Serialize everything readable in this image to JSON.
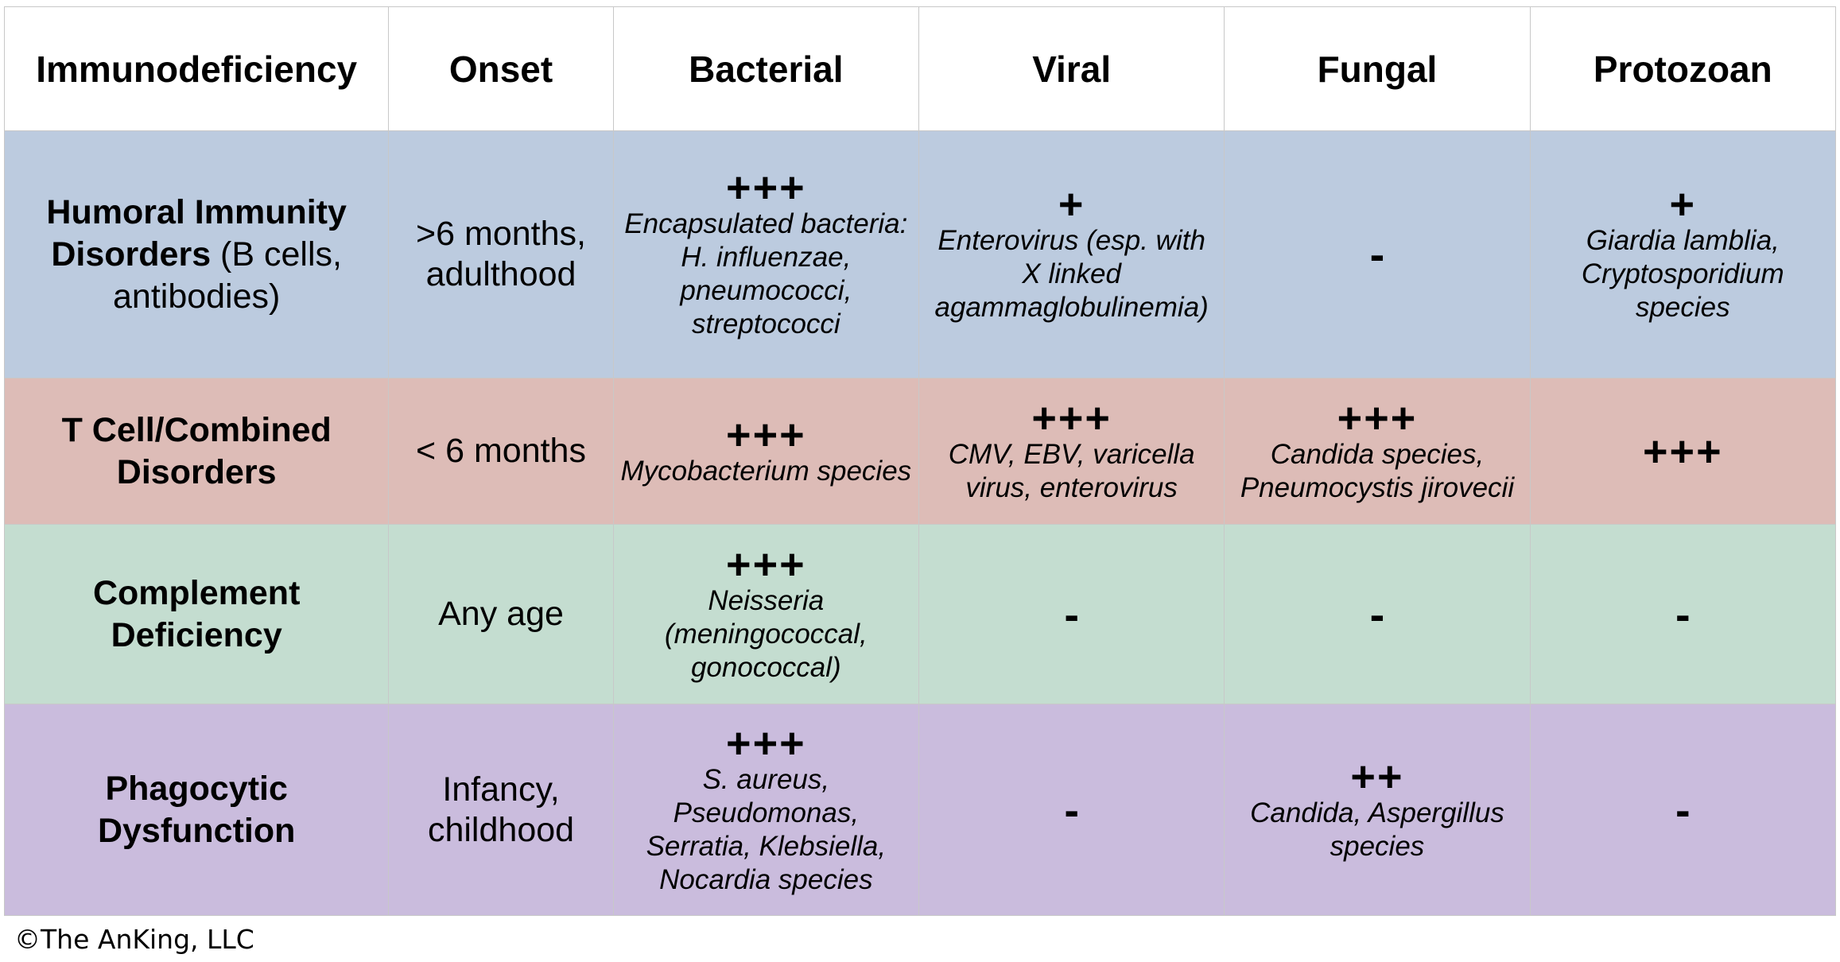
{
  "headers": [
    "Immunodeficiency",
    "Onset",
    "Bacterial",
    "Viral",
    "Fungal",
    "Protozoan"
  ],
  "rows": [
    {
      "name_bold_1": "Humoral Immunity",
      "name_bold_2": "Disorders",
      "name_plain": " (B cells, antibodies)",
      "onset": ">6 months, adulthood",
      "bacterial": {
        "sev": "+++",
        "detail": "Encapsulated bacteria: H. influenzae, pneumococci, streptococci"
      },
      "viral": {
        "sev": "+",
        "detail": "Enterovirus (esp. with X linked agammaglobulinemia)"
      },
      "fungal": {
        "sev": "-"
      },
      "protozoan": {
        "sev": "+",
        "detail": "Giardia lamblia, Cryptosporidium species"
      }
    },
    {
      "name_bold_1": "T Cell/Combined",
      "name_bold_2": "Disorders",
      "onset": "< 6 months",
      "bacterial": {
        "sev": "+++",
        "detail": "Mycobacterium species"
      },
      "viral": {
        "sev": "+++",
        "detail": "CMV, EBV, varicella virus, enterovirus"
      },
      "fungal": {
        "sev": "+++",
        "detail": "Candida species, Pneumocystis jirovecii"
      },
      "protozoan": {
        "sev": "+++"
      }
    },
    {
      "name_bold_1": "Complement",
      "name_bold_2": "Deficiency",
      "onset": "Any age",
      "bacterial": {
        "sev": "+++",
        "detail": "Neisseria (meningococcal, gonococcal)"
      },
      "viral": {
        "sev": "-"
      },
      "fungal": {
        "sev": "-"
      },
      "protozoan": {
        "sev": "-"
      }
    },
    {
      "name_bold_1": "Phagocytic",
      "name_bold_2": "Dysfunction",
      "onset": "Infancy, childhood",
      "bacterial": {
        "sev": "+++",
        "detail": "S. aureus, Pseudomonas, Serratia, Klebsiella, Nocardia species"
      },
      "viral": {
        "sev": "-"
      },
      "fungal": {
        "sev": "++",
        "detail": "Candida, Aspergillus species"
      },
      "protozoan": {
        "sev": "-"
      }
    }
  ],
  "copyright": "©The AnKing, LLC"
}
